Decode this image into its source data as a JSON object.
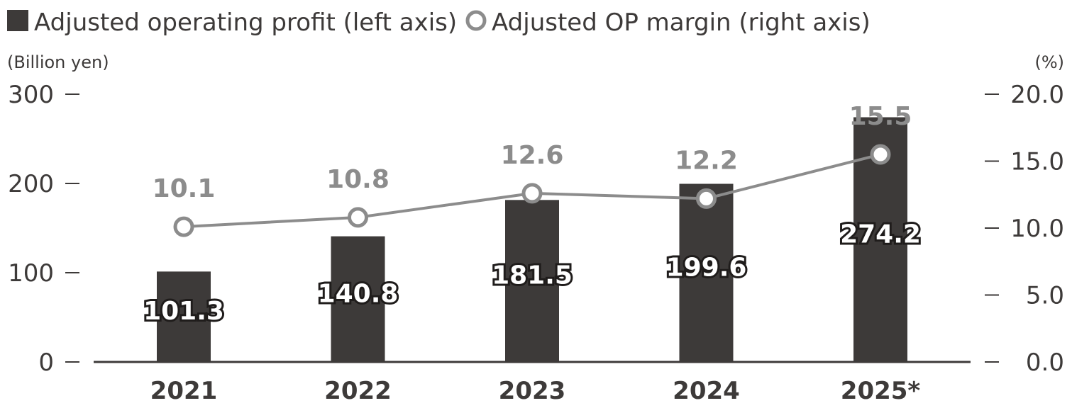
{
  "chart_data": {
    "type": "bar",
    "categories": [
      "2021",
      "2022",
      "2023",
      "2024",
      "2025*"
    ],
    "series": [
      {
        "name": "Adjusted operating profit (left axis)",
        "kind": "bar",
        "axis": "left",
        "values": [
          101.3,
          140.8,
          181.5,
          199.6,
          274.2
        ],
        "labels": [
          "101.3",
          "140.8",
          "181.5",
          "199.6",
          "274.2"
        ],
        "color": "#3d3a39"
      },
      {
        "name": "Adjusted OP margin (right axis)",
        "kind": "line",
        "axis": "right",
        "values": [
          10.1,
          10.8,
          12.6,
          12.2,
          15.5
        ],
        "labels": [
          "10.1",
          "10.8",
          "12.6",
          "12.2",
          "15.5"
        ],
        "color": "#8c8c8c"
      }
    ],
    "left_axis": {
      "unit": "(Billion yen)",
      "range": [
        0,
        300
      ],
      "ticks": [
        0,
        100,
        200,
        300
      ],
      "tick_labels": [
        "0",
        "100",
        "200",
        "300"
      ]
    },
    "right_axis": {
      "unit": "(%)",
      "range": [
        0,
        20
      ],
      "ticks": [
        0,
        5,
        10,
        15,
        20
      ],
      "tick_labels": [
        "0.0",
        "5.0",
        "10.0",
        "15.0",
        "20.0"
      ]
    },
    "legend_position": "top-left",
    "grid": false
  }
}
